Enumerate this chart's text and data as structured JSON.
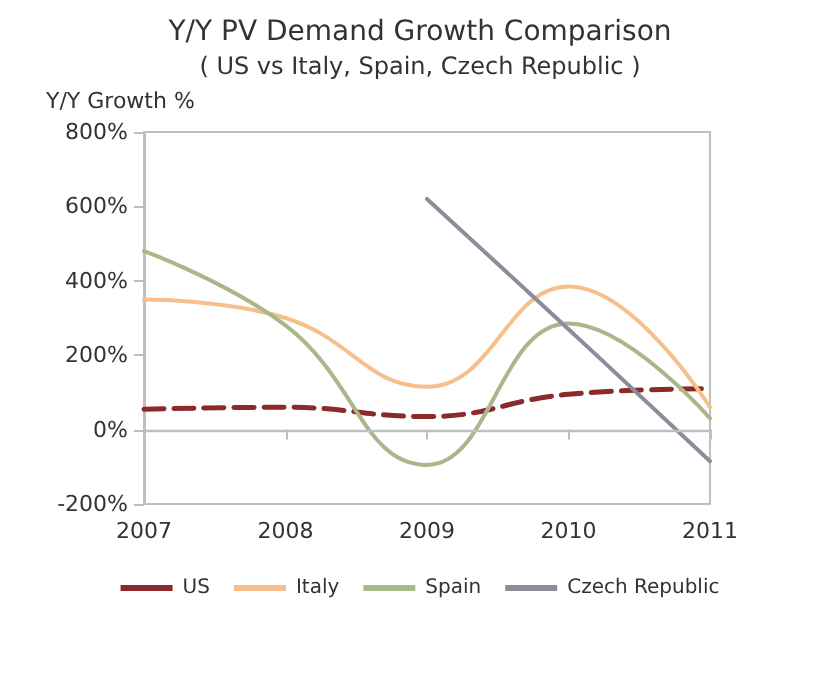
{
  "chart_data": {
    "type": "line",
    "title": "Y/Y PV Demand Growth Comparison",
    "subtitle": "( US vs Italy, Spain, Czech Republic )",
    "ylabel": "Y/Y Growth %",
    "categories": [
      "2007",
      "2008",
      "2009",
      "2010",
      "2011"
    ],
    "series": [
      {
        "name": "US",
        "color": "#8b2a2a",
        "line_style": "dashed",
        "values": [
          55,
          60,
          35,
          95,
          110
        ]
      },
      {
        "name": "Italy",
        "color": "#f5c08e",
        "values": [
          350,
          300,
          115,
          385,
          60
        ]
      },
      {
        "name": "Spain",
        "color": "#a8b88a",
        "values": [
          480,
          280,
          -95,
          285,
          30
        ]
      },
      {
        "name": "Czech Republic",
        "color": "#8c8c9c",
        "values": [
          null,
          null,
          620,
          270,
          -85
        ]
      }
    ],
    "ylim": [
      -200,
      800
    ],
    "yticks": [
      {
        "value": -200,
        "label": "-200%"
      },
      {
        "value": 0,
        "label": "0%"
      },
      {
        "value": 200,
        "label": "200%"
      },
      {
        "value": 400,
        "label": "400%"
      },
      {
        "value": 600,
        "label": "600%"
      },
      {
        "value": 800,
        "label": "800%"
      }
    ],
    "ref_lines": [
      {
        "axis": "y",
        "value": 0,
        "color": "#bfbfbf"
      }
    ],
    "grid": false,
    "legend": "bottom",
    "marker": "none",
    "line_style": "solid"
  }
}
